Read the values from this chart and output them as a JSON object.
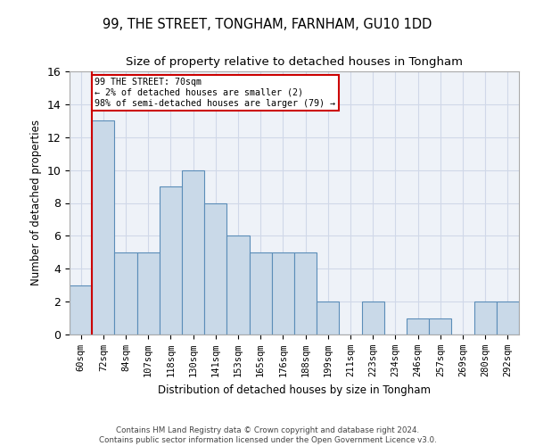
{
  "title": "99, THE STREET, TONGHAM, FARNHAM, GU10 1DD",
  "subtitle": "Size of property relative to detached houses in Tongham",
  "xlabel": "Distribution of detached houses by size in Tongham",
  "ylabel": "Number of detached properties",
  "categories": [
    "60sqm",
    "72sqm",
    "84sqm",
    "107sqm",
    "118sqm",
    "130sqm",
    "141sqm",
    "153sqm",
    "165sqm",
    "176sqm",
    "188sqm",
    "199sqm",
    "211sqm",
    "223sqm",
    "234sqm",
    "246sqm",
    "257sqm",
    "269sqm",
    "280sqm",
    "292sqm"
  ],
  "values": [
    3,
    13,
    5,
    5,
    9,
    10,
    8,
    6,
    5,
    5,
    5,
    2,
    0,
    2,
    0,
    1,
    1,
    0,
    2,
    2
  ],
  "bar_color": "#c9d9e8",
  "bar_edge_color": "#5b8db8",
  "annotation_text_line1": "99 THE STREET: 70sqm",
  "annotation_text_line2": "← 2% of detached houses are smaller (2)",
  "annotation_text_line3": "98% of semi-detached houses are larger (79) →",
  "annotation_box_color": "#ffffff",
  "annotation_box_edge": "#cc0000",
  "vline_color": "#cc0000",
  "grid_color": "#d0d8e8",
  "background_color": "#eef2f8",
  "ylim": [
    0,
    16
  ],
  "yticks": [
    0,
    2,
    4,
    6,
    8,
    10,
    12,
    14,
    16
  ],
  "footer_line1": "Contains HM Land Registry data © Crown copyright and database right 2024.",
  "footer_line2": "Contains public sector information licensed under the Open Government Licence v3.0."
}
